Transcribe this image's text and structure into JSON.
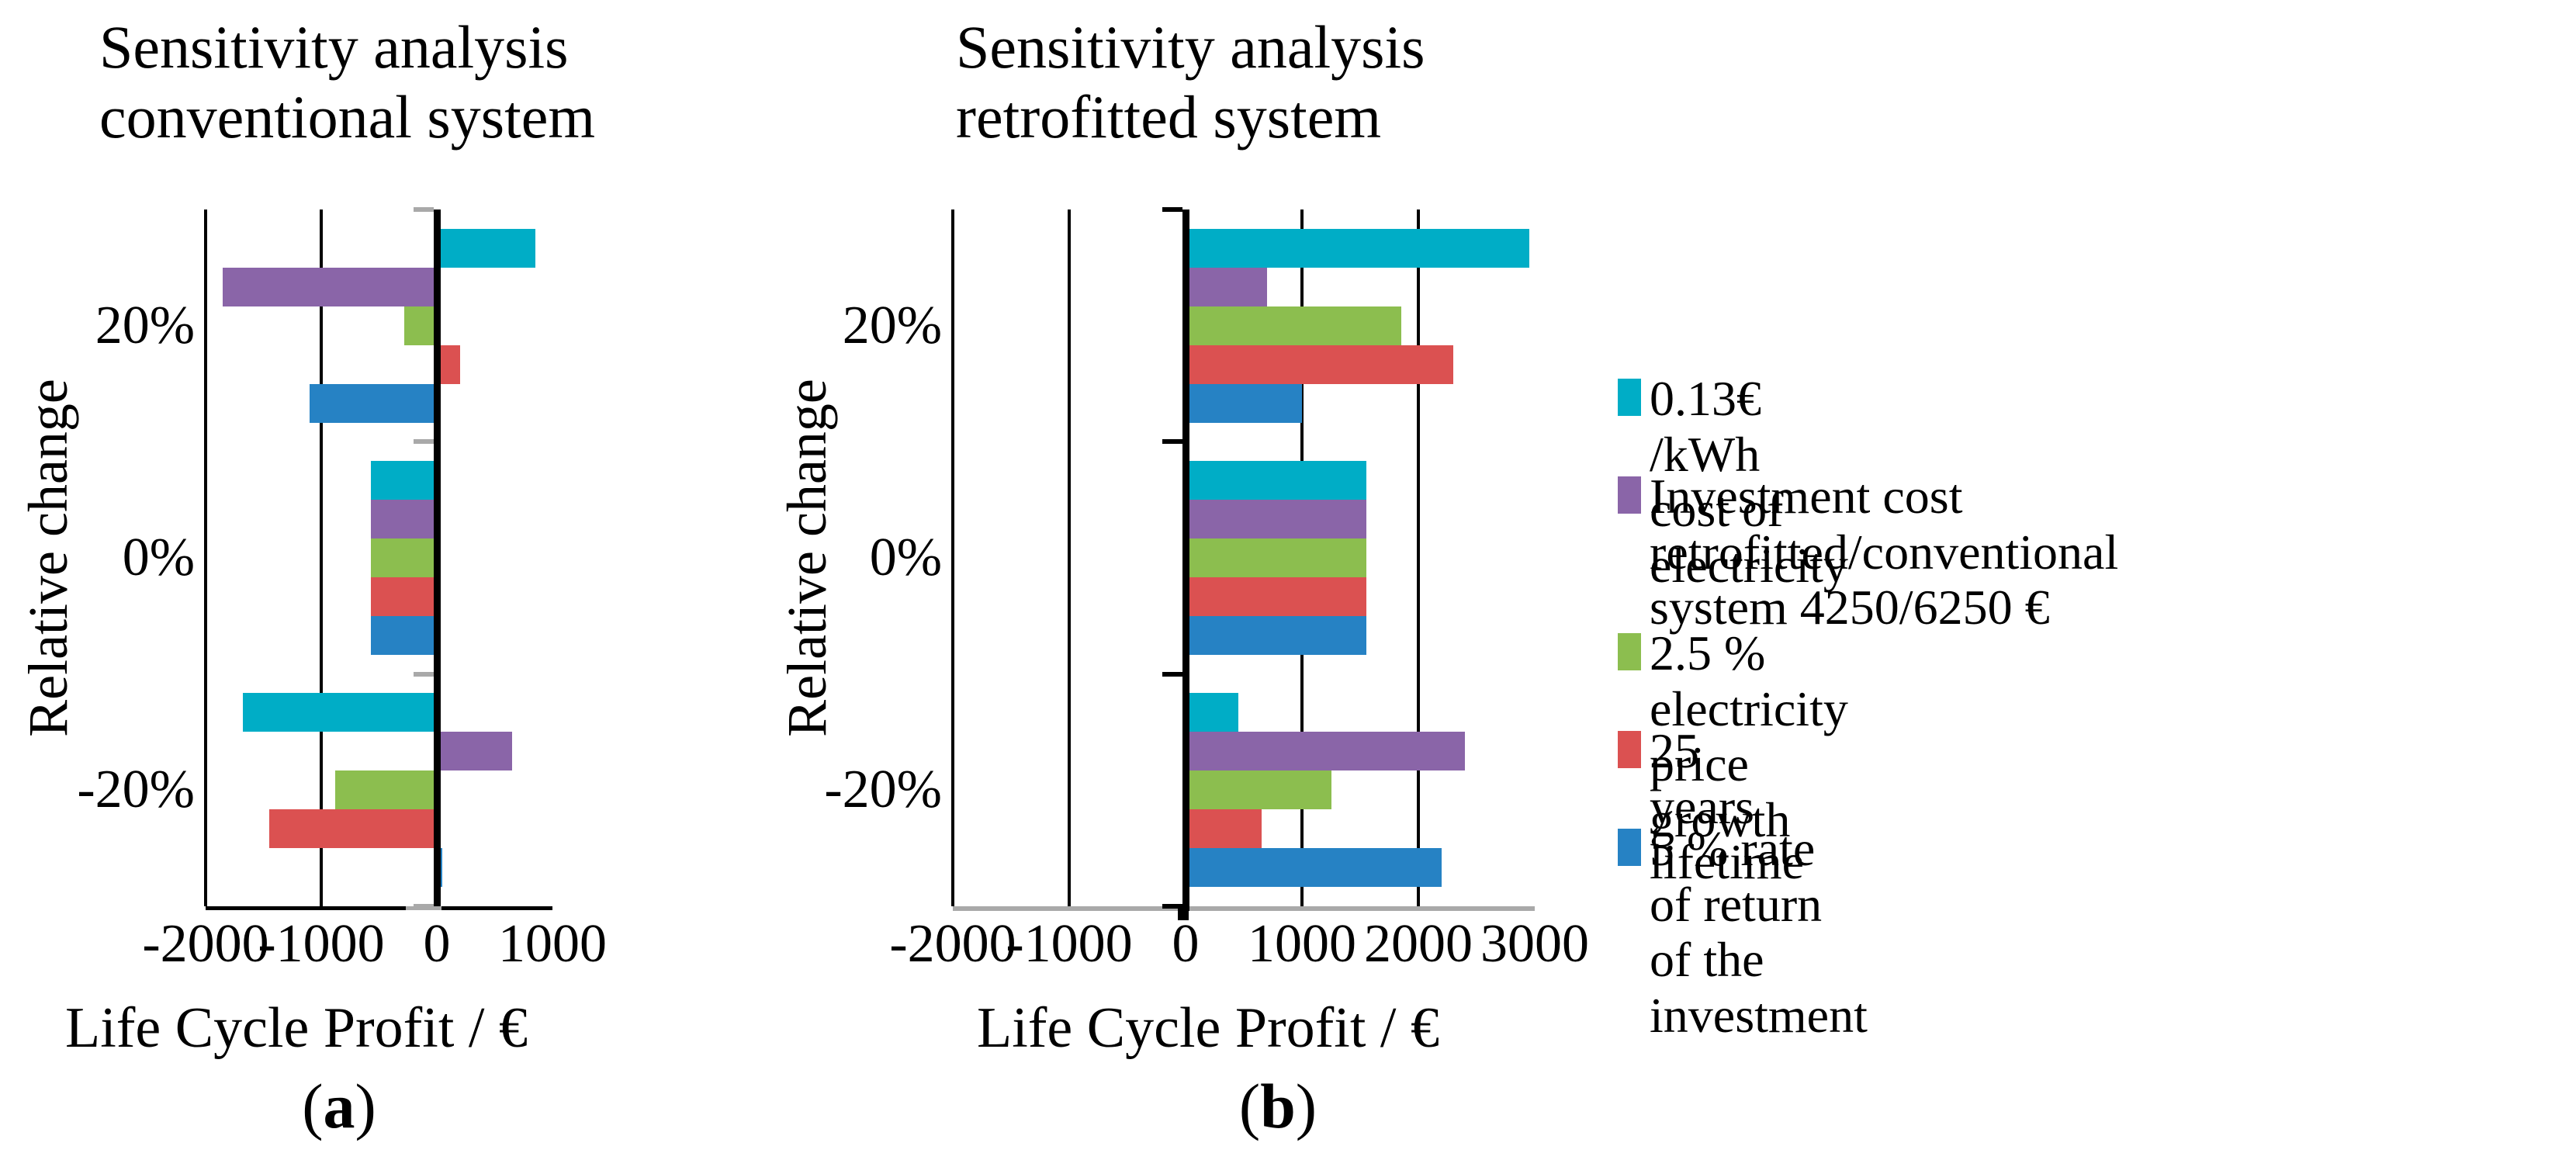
{
  "figure": {
    "caption_a": "(a)",
    "caption_b": "(b)",
    "background": "#ffffff"
  },
  "colors": {
    "electricity_cost": "#00ADC6",
    "investment_cost": "#8A65A8",
    "price_growth": "#8CBE4F",
    "lifetime": "#DB5151",
    "rate_of_return": "#2682C4",
    "gridline_black": "#000000",
    "axis_gray": "#A9A9A9"
  },
  "chart_data": [
    {
      "type": "bar",
      "orientation": "horizontal",
      "title": "Sensitivity analysis\nconventional system",
      "xlabel": "Life Cycle Profit / €",
      "ylabel": "Relative change",
      "caption": "(a)",
      "xlim": [
        -2000,
        1000
      ],
      "ticks": [
        -2000,
        -1000,
        0,
        1000
      ],
      "tick_labels": [
        "-2000",
        "-1000",
        "0",
        "1000"
      ],
      "grid": "vertical lines at each 1000, bold axis at 0",
      "legend_position": "none",
      "categories": [
        "20%",
        "0%",
        "-20%"
      ],
      "series": [
        {
          "name": "0.13€ /kWh cost of electricity",
          "color": "#00ADC6",
          "values": [
            850,
            -570,
            -1680
          ]
        },
        {
          "name": "Investment cost retrofitted/conventional system 4250/6250 €",
          "color": "#8A65A8",
          "values": [
            -1850,
            -570,
            650
          ]
        },
        {
          "name": "2.5 % electricity price growth",
          "color": "#8CBE4F",
          "values": [
            -280,
            -570,
            -880
          ]
        },
        {
          "name": "25 years lifetime",
          "color": "#DB5151",
          "values": [
            200,
            -570,
            -1450
          ]
        },
        {
          "name": "5 % rate of return of the investment",
          "color": "#2682C4",
          "values": [
            -1100,
            -570,
            50
          ]
        }
      ]
    },
    {
      "type": "bar",
      "orientation": "horizontal",
      "title": "Sensitivity analysis\nretrofitted system",
      "xlabel": "Life Cycle Profit / €",
      "ylabel": "Relative change",
      "caption": "(b)",
      "xlim": [
        -2000,
        3000
      ],
      "ticks": [
        -2000,
        -1000,
        0,
        1000,
        2000,
        3000
      ],
      "tick_labels": [
        "-2000",
        "-1000",
        "0",
        "1000",
        "2000",
        "3000"
      ],
      "grid": "vertical lines at each 1000, bold axis at 0",
      "legend_position": "right of chart",
      "categories": [
        "20%",
        "0%",
        "-20%"
      ],
      "series": [
        {
          "name": "0.13€ /kWh cost of electricity",
          "color": "#00ADC6",
          "values": [
            2950,
            1550,
            450
          ]
        },
        {
          "name": "Investment cost retrofitted/conventional system 4250/6250 €",
          "color": "#8A65A8",
          "values": [
            700,
            1550,
            2400
          ]
        },
        {
          "name": "2.5 % electricity price growth",
          "color": "#8CBE4F",
          "values": [
            1850,
            1550,
            1250
          ]
        },
        {
          "name": "25 years lifetime",
          "color": "#DB5151",
          "values": [
            2300,
            1550,
            650
          ]
        },
        {
          "name": "5 % rate of return of the investment",
          "color": "#2682C4",
          "values": [
            1000,
            1550,
            2200
          ]
        }
      ]
    }
  ],
  "legend": {
    "items": [
      {
        "label": "0.13€ /kWh cost of electricity",
        "color": "#00ADC6"
      },
      {
        "label": "Investment cost retrofitted/conventional\nsystem 4250/6250 €",
        "color": "#8A65A8"
      },
      {
        "label": "2.5 % electricity price growth",
        "color": "#8CBE4F"
      },
      {
        "label": "25 years lifetime",
        "color": "#DB5151"
      },
      {
        "label": "5 % rate of return of the investment",
        "color": "#2682C4"
      }
    ]
  }
}
